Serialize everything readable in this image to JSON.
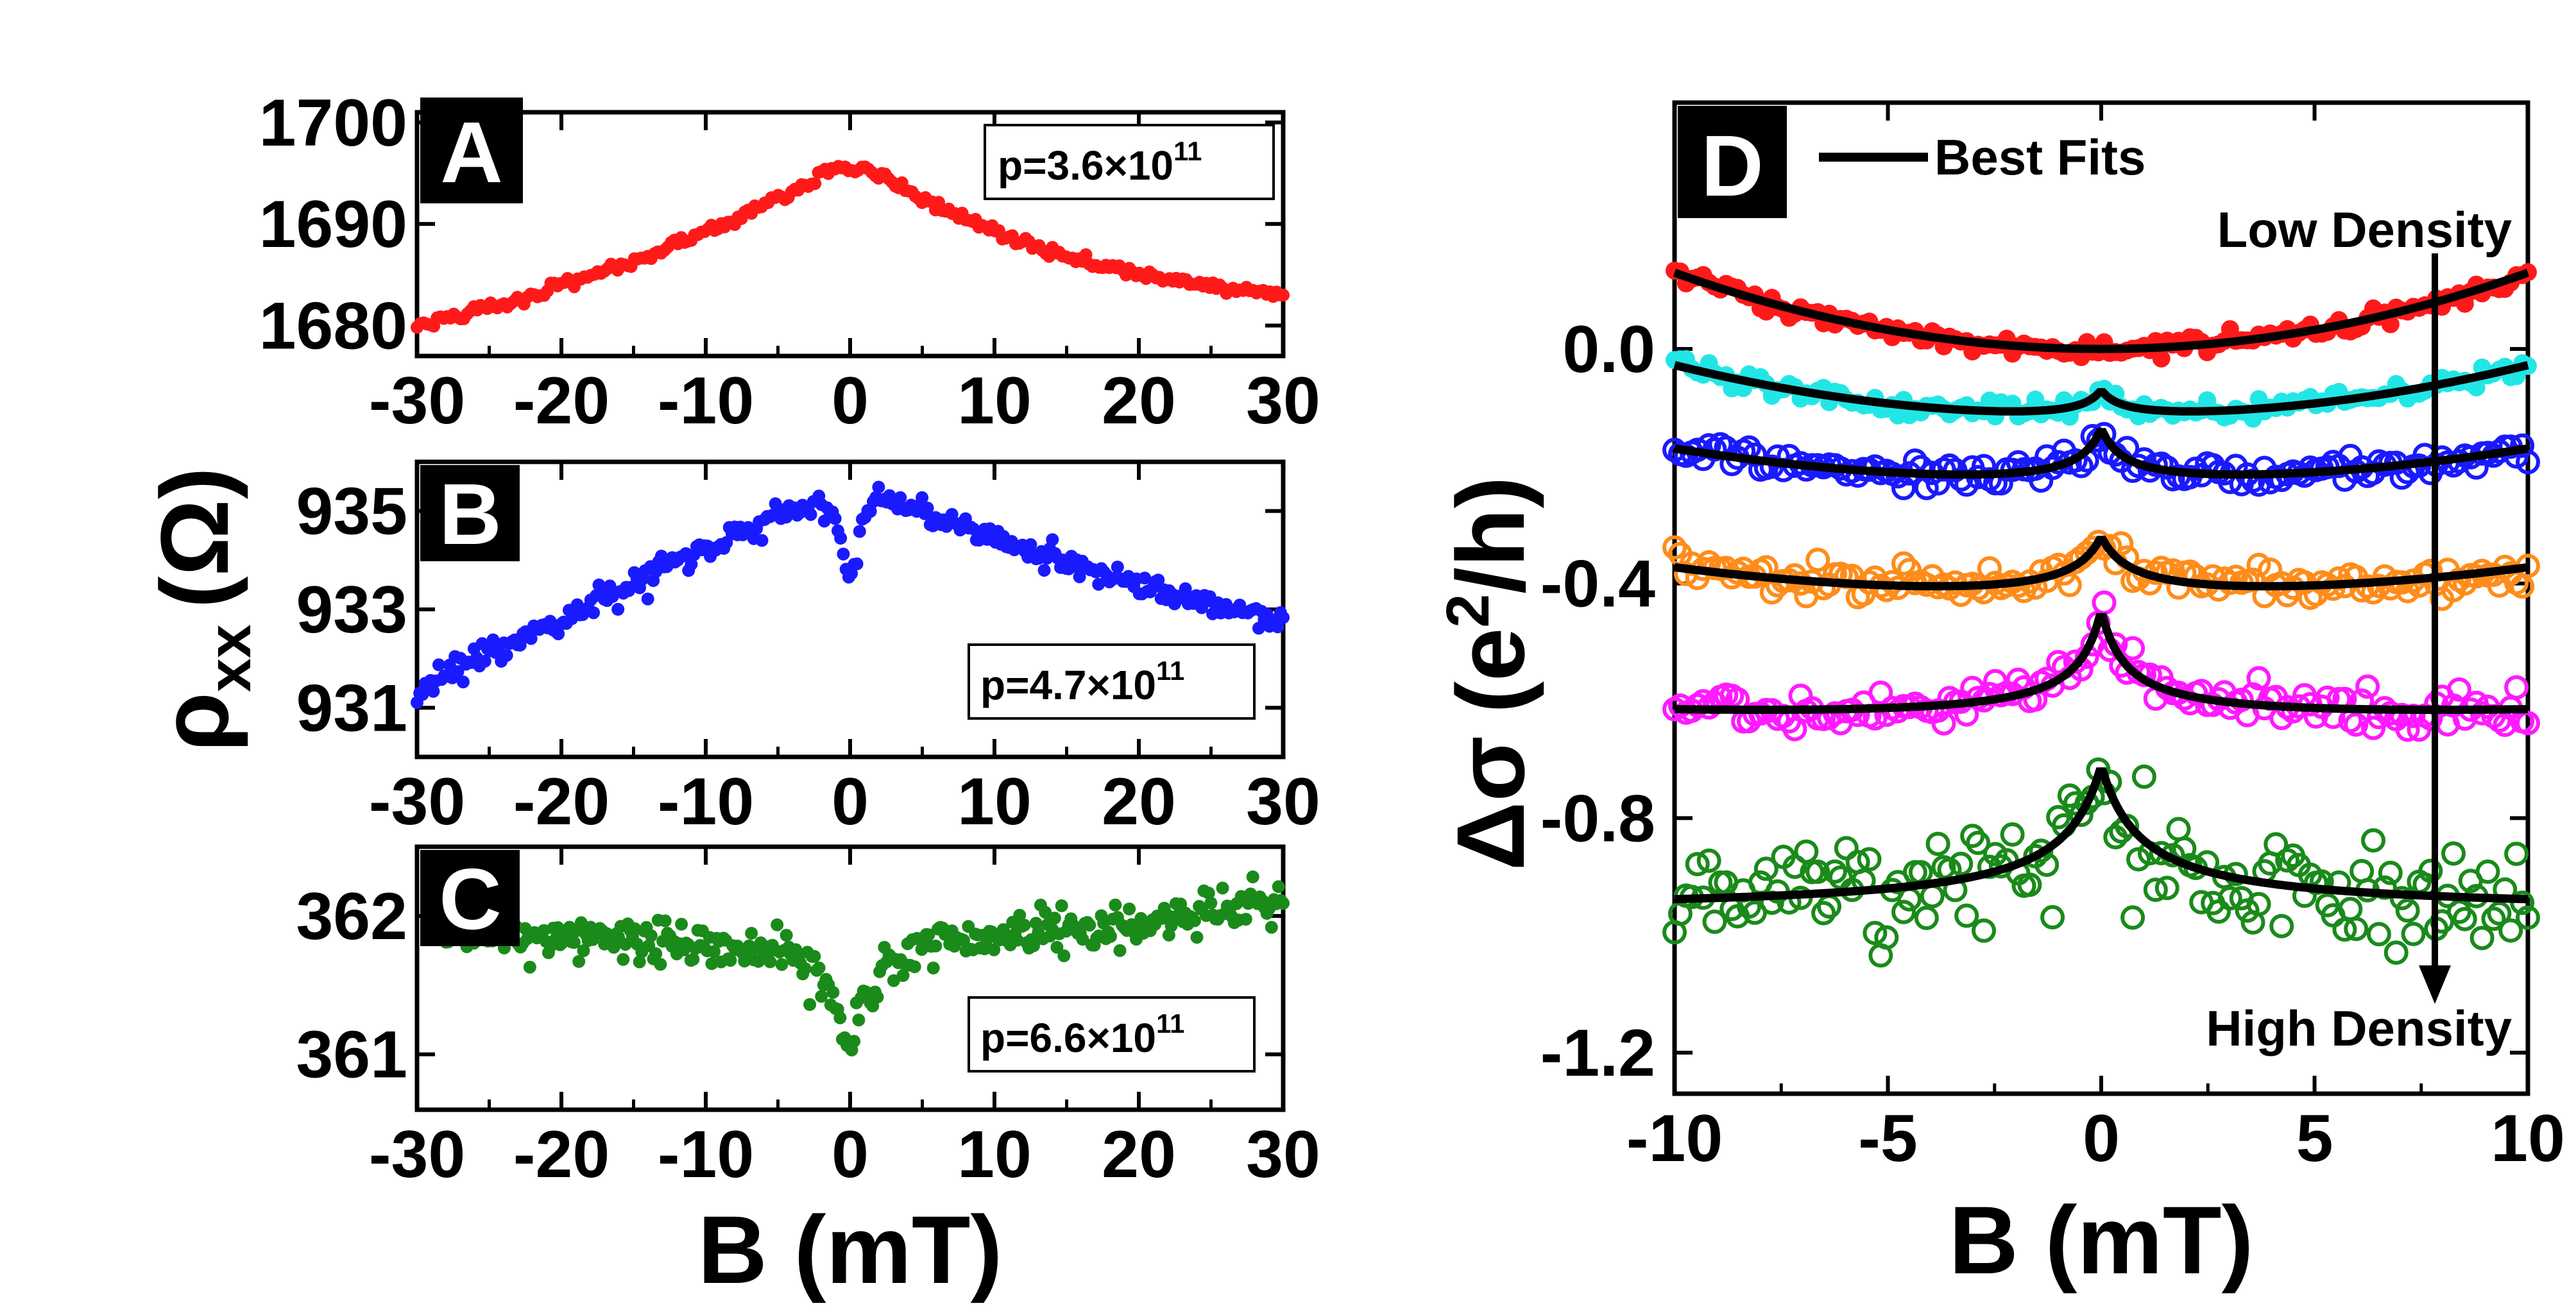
{
  "figure": {
    "shared_xlabel_left": "B (mT)",
    "shared_ylabel_left": "ρxx (Ω)",
    "shared_ylabel_left_parts": {
      "symbol": "ρ",
      "sub": "xx",
      "unit": "(Ω)"
    }
  },
  "chart_data": [
    {
      "panel": "A",
      "type": "scatter",
      "color": "#ff1a1a",
      "annotation": {
        "base": "p=3.6×10",
        "exp": "11"
      },
      "xlim": [
        -30,
        30
      ],
      "ylim": [
        1677,
        1701
      ],
      "xticks": [
        -30,
        -20,
        -10,
        0,
        10,
        20,
        30
      ],
      "xtick_labels": [
        "-30",
        "-20",
        "-10",
        "0",
        "10",
        "20",
        "30"
      ],
      "yticks": [
        1680,
        1690,
        1700
      ],
      "ytick_labels": [
        "1680",
        "1690",
        "1700"
      ],
      "series": [
        {
          "name": "p=3.6×10^11",
          "x": [
            -30,
            -25,
            -20,
            -15,
            -10,
            -6,
            -3,
            -1,
            0,
            1,
            3,
            6,
            10,
            15,
            20,
            25,
            30
          ],
          "y": [
            1680.0,
            1681.8,
            1684.0,
            1686.4,
            1689.2,
            1691.8,
            1694.0,
            1695.6,
            1695.3,
            1695.6,
            1694.0,
            1691.8,
            1689.2,
            1686.8,
            1685.0,
            1683.8,
            1683.0
          ]
        }
      ]
    },
    {
      "panel": "B",
      "type": "scatter",
      "color": "#1a1aff",
      "annotation": {
        "base": "p=4.7×10",
        "exp": "11"
      },
      "xlim": [
        -30,
        30
      ],
      "ylim": [
        930,
        936
      ],
      "xticks": [
        -30,
        -20,
        -10,
        0,
        10,
        20,
        30
      ],
      "xtick_labels": [
        "-30",
        "-20",
        "-10",
        "0",
        "10",
        "20",
        "30"
      ],
      "yticks": [
        931,
        933,
        935
      ],
      "ytick_labels": [
        "931",
        "933",
        "935"
      ],
      "series": [
        {
          "name": "p=4.7×10^11",
          "x": [
            -30,
            -25,
            -20,
            -15,
            -10,
            -5,
            -2,
            -1,
            0,
            1,
            2,
            5,
            10,
            15,
            20,
            25,
            30
          ],
          "y": [
            931.4,
            932.1,
            932.8,
            933.5,
            934.2,
            934.9,
            935.2,
            934.8,
            933.6,
            934.9,
            935.3,
            935.0,
            934.4,
            933.9,
            933.5,
            933.1,
            932.7
          ]
        }
      ]
    },
    {
      "panel": "C",
      "type": "scatter",
      "color": "#1a8a1a",
      "annotation": {
        "base": "p=6.6×10",
        "exp": "11"
      },
      "xlim": [
        -30,
        30
      ],
      "ylim": [
        360.6,
        362.5
      ],
      "xticks": [
        -30,
        -20,
        -10,
        0,
        10,
        20,
        30
      ],
      "xtick_labels": [
        "-30",
        "-20",
        "-10",
        "0",
        "10",
        "20",
        "30"
      ],
      "yticks": [
        361,
        362
      ],
      "ytick_labels": [
        "361",
        "362"
      ],
      "series": [
        {
          "name": "p=6.6×10^11",
          "x": [
            -28,
            -20,
            -10,
            -5,
            -3,
            -1.5,
            -0.5,
            0,
            0.5,
            1.5,
            3,
            5,
            10,
            20,
            30
          ],
          "y": [
            361.9,
            361.85,
            361.8,
            361.75,
            361.65,
            361.45,
            361.2,
            361.0,
            361.2,
            361.45,
            361.7,
            361.8,
            361.85,
            361.95,
            362.1
          ]
        }
      ]
    },
    {
      "panel": "D",
      "type": "scatter",
      "xlabel": "B (mT)",
      "ylabel_parts": {
        "symbol": "Δσ",
        "paren_open": "(e",
        "sup": "2",
        "rest": "/h)"
      },
      "xlim": [
        -10,
        10
      ],
      "ylim": [
        -1.27,
        0.42
      ],
      "xticks": [
        -10,
        -5,
        0,
        5,
        10
      ],
      "xtick_labels": [
        "-10",
        "-5",
        "0",
        "5",
        "10"
      ],
      "yticks": [
        0.0,
        -0.4,
        -0.8,
        -1.2
      ],
      "ytick_labels": [
        "0.0",
        "-0.4",
        "-0.8",
        "-1.2"
      ],
      "legend": {
        "label": "Best Fits",
        "position": "top-left"
      },
      "annotations": {
        "low": "Low Density",
        "high": "High Density"
      },
      "fit_color": "#000000",
      "series": [
        {
          "name": "red",
          "color": "#ff1a1a",
          "marker_filled": true,
          "offset": 0.0,
          "sigma_rise": 0.0013,
          "cusp": 0.0,
          "width": 1.0,
          "noise": 0.008
        },
        {
          "name": "cyan",
          "color": "#22e6e6",
          "marker_filled": true,
          "offset": -0.12,
          "sigma_rise": 0.0009,
          "cusp": 0.05,
          "width": 0.5,
          "noise": 0.008
        },
        {
          "name": "blue",
          "color": "#1a1aff",
          "marker_filled": false,
          "offset": -0.235,
          "sigma_rise": 0.0006,
          "cusp": 0.1,
          "width": 0.55,
          "noise": 0.01
        },
        {
          "name": "orange",
          "color": "#ff8c1a",
          "marker_filled": false,
          "offset": -0.43,
          "sigma_rise": 0.0005,
          "cusp": 0.11,
          "width": 0.75,
          "noise": 0.012
        },
        {
          "name": "magenta",
          "color": "#ff1aff",
          "marker_filled": false,
          "offset": -0.635,
          "sigma_rise": 0.0001,
          "cusp": 0.19,
          "width": 0.6,
          "noise": 0.016
        },
        {
          "name": "green",
          "color": "#1a8a1a",
          "marker_filled": false,
          "offset": -0.96,
          "sigma_rise": 0.0,
          "cusp": 0.25,
          "width": 0.95,
          "noise": 0.045
        }
      ]
    }
  ]
}
